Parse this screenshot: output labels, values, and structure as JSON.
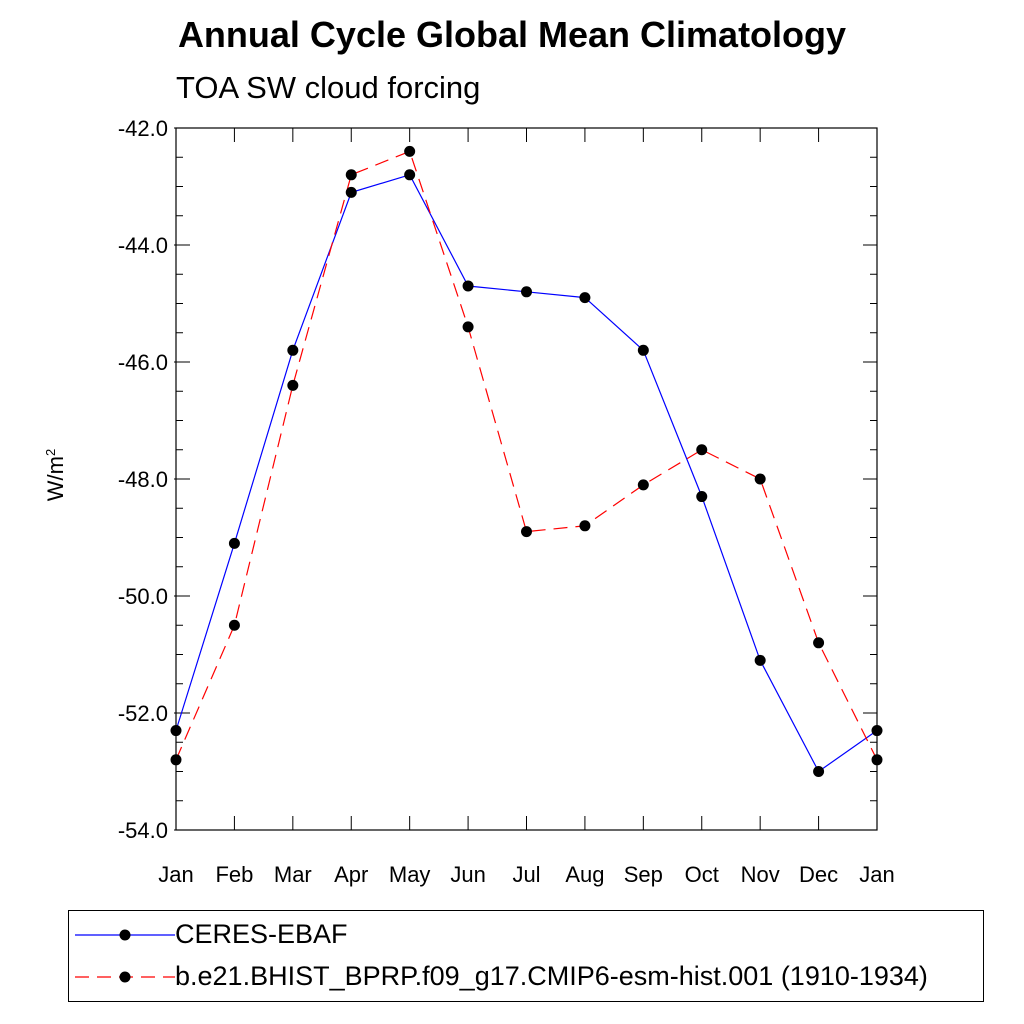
{
  "title": "Annual Cycle Global Mean Climatology",
  "subtitle": "TOA SW cloud forcing",
  "ylabel_base": "W/m",
  "ylabel_sup": "2",
  "colors": {
    "ceres": "#0000ff",
    "model": "#ff0000",
    "marker": "#000000"
  },
  "chart_data": {
    "type": "line",
    "title": "Annual Cycle Global Mean Climatology",
    "subtitle": "TOA SW cloud forcing",
    "xlabel": "",
    "ylabel": "W/m2",
    "ylim": [
      -54.0,
      -42.0
    ],
    "yticks": [
      -42.0,
      -44.0,
      -46.0,
      -48.0,
      -50.0,
      -52.0,
      -54.0
    ],
    "ytick_labels": [
      "-42.0",
      "-44.0",
      "-46.0",
      "-48.0",
      "-50.0",
      "-52.0",
      "-54.0"
    ],
    "categories": [
      "Jan",
      "Feb",
      "Mar",
      "Apr",
      "May",
      "Jun",
      "Jul",
      "Aug",
      "Sep",
      "Oct",
      "Nov",
      "Dec",
      "Jan"
    ],
    "series": [
      {
        "name": "CERES-EBAF",
        "style": "solid",
        "color": "#0000ff",
        "values": [
          -52.3,
          -49.1,
          -45.8,
          -43.1,
          -42.8,
          -44.7,
          -44.8,
          -44.9,
          -45.8,
          -48.3,
          -51.1,
          -53.0,
          -52.3
        ]
      },
      {
        "name": "b.e21.BHIST_BPRP.f09_g17.CMIP6-esm-hist.001 (1910-1934)",
        "style": "dashed",
        "color": "#ff0000",
        "values": [
          -52.8,
          -50.5,
          -46.4,
          -42.8,
          -42.4,
          -45.4,
          -48.9,
          -48.8,
          -48.1,
          -47.5,
          -48.0,
          -50.8,
          -52.8
        ]
      }
    ],
    "legend_position": "bottom"
  },
  "legend": {
    "ceres_label": "CERES-EBAF",
    "model_label": "b.e21.BHIST_BPRP.f09_g17.CMIP6-esm-hist.001 (1910-1934)"
  }
}
